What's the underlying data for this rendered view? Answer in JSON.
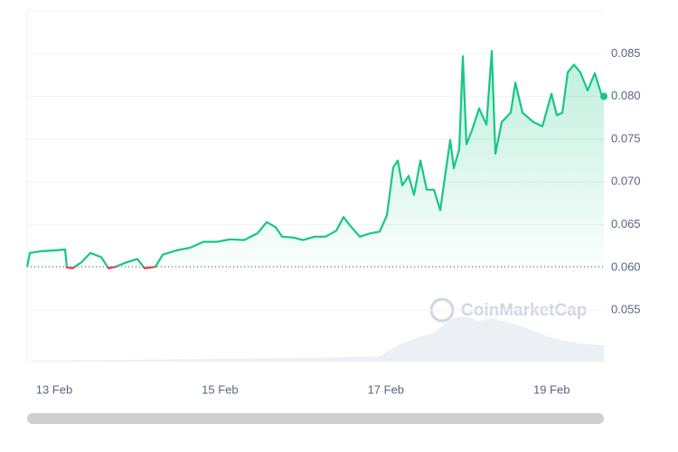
{
  "chart_data": {
    "type": "line",
    "watermark": "CoinMarketCap",
    "x": [
      12.673,
      12.706,
      12.836,
      13.0,
      13.131,
      13.153,
      13.218,
      13.327,
      13.436,
      13.567,
      13.654,
      13.742,
      13.872,
      14.003,
      14.091,
      14.221,
      14.309,
      14.472,
      14.636,
      14.799,
      14.963,
      15.127,
      15.29,
      15.454,
      15.563,
      15.672,
      15.748,
      15.89,
      15.999,
      16.141,
      16.272,
      16.402,
      16.49,
      16.577,
      16.686,
      16.817,
      16.926,
      17.013,
      17.089,
      17.144,
      17.198,
      17.275,
      17.34,
      17.417,
      17.493,
      17.58,
      17.656,
      17.722,
      17.776,
      17.82,
      17.885,
      17.929,
      17.973,
      18.038,
      18.125,
      18.213,
      18.278,
      18.322,
      18.398,
      18.507,
      18.562,
      18.649,
      18.78,
      18.889,
      18.998,
      19.063,
      19.129,
      19.194,
      19.27,
      19.347,
      19.434,
      19.521,
      19.597,
      19.63
    ],
    "series": [
      {
        "color": "#16c784",
        "values": [
          0.0601,
          0.0617,
          0.0619,
          0.062,
          0.0621,
          0.06,
          0.0599,
          0.0606,
          0.0617,
          0.0612,
          0.0599,
          0.0601,
          0.0606,
          0.061,
          0.0599,
          0.0601,
          0.0615,
          0.062,
          0.0623,
          0.063,
          0.063,
          0.0633,
          0.0632,
          0.064,
          0.0653,
          0.0647,
          0.0636,
          0.0635,
          0.0632,
          0.0636,
          0.0636,
          0.0643,
          0.0659,
          0.0648,
          0.0636,
          0.064,
          0.0642,
          0.0661,
          0.0717,
          0.0725,
          0.0696,
          0.0707,
          0.0685,
          0.0725,
          0.0691,
          0.0691,
          0.0667,
          0.0712,
          0.0749,
          0.0716,
          0.0738,
          0.0847,
          0.0744,
          0.076,
          0.0786,
          0.0767,
          0.0853,
          0.0733,
          0.077,
          0.0781,
          0.0816,
          0.0781,
          0.077,
          0.0765,
          0.0803,
          0.0778,
          0.0781,
          0.0828,
          0.0837,
          0.0828,
          0.0807,
          0.0827,
          0.0803,
          0.08
        ]
      }
    ],
    "below_color": "#ea3943",
    "baseline": 0.0601,
    "xlim": [
      12.673,
      19.63
    ],
    "ylim": [
      0.049,
      0.09
    ],
    "xticks": [
      {
        "value": 13,
        "label": "13 Feb"
      },
      {
        "value": 15,
        "label": "15 Feb"
      },
      {
        "value": 17,
        "label": "17 Feb"
      },
      {
        "value": 19,
        "label": "19 Feb"
      }
    ],
    "yticks": [
      {
        "value": 0.055,
        "label": "0.055"
      },
      {
        "value": 0.06,
        "label": "0.060"
      },
      {
        "value": 0.065,
        "label": "0.065"
      },
      {
        "value": 0.07,
        "label": "0.070"
      },
      {
        "value": 0.075,
        "label": "0.075"
      },
      {
        "value": 0.08,
        "label": "0.080"
      },
      {
        "value": 0.085,
        "label": "0.085"
      }
    ],
    "grid": true
  }
}
